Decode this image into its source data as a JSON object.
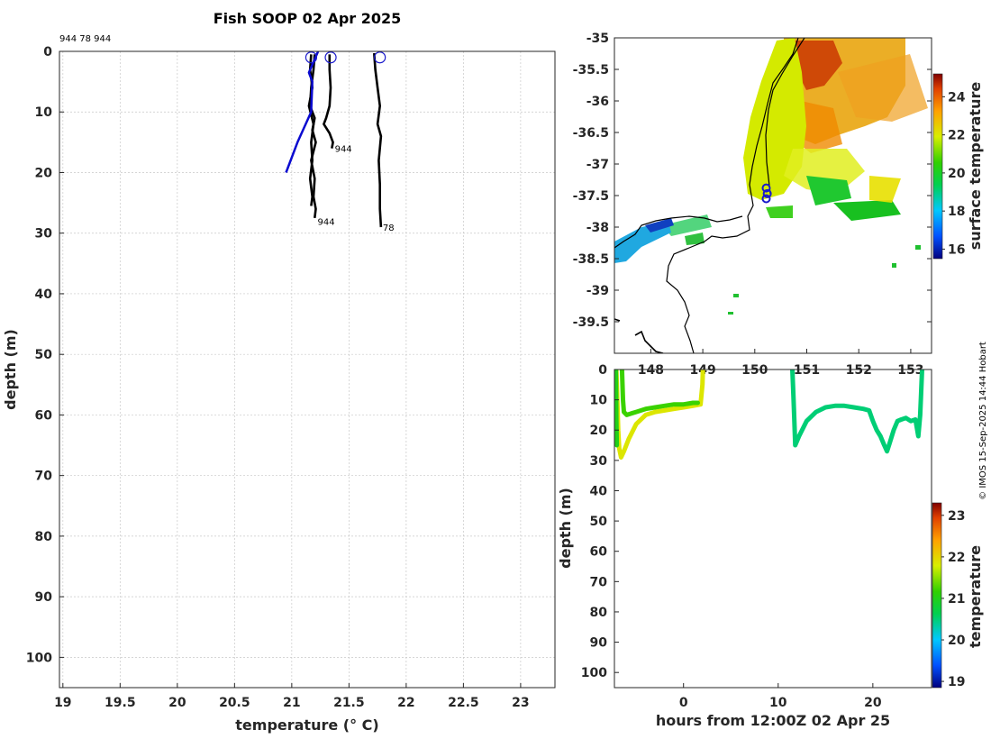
{
  "title": "Fish SOOP 02 Apr 2025",
  "header_note": "944 78 944",
  "credit": "© IMOS 15-Sep-2025 14:44 Hobart",
  "colors": {
    "profile": "#000000",
    "climatology": "#0a0ad0",
    "marker": "#1a1acc"
  },
  "chart_data": [
    {
      "id": "profiles",
      "type": "line",
      "xlabel": "temperature (° C)",
      "ylabel": "depth (m)",
      "xlim": [
        18.97,
        23.3
      ],
      "ylim": [
        105,
        0
      ],
      "xticks": [
        19,
        19.5,
        20,
        20.5,
        21,
        21.5,
        22,
        22.5,
        23
      ],
      "yticks": [
        0,
        10,
        20,
        30,
        40,
        50,
        60,
        70,
        80,
        90,
        100
      ],
      "grid": true,
      "series": [
        {
          "kind": "profile",
          "x": [
            21.2,
            21.19,
            21.17,
            21.16,
            21.2,
            21.18,
            21.21,
            21.17,
            21.2,
            21.19,
            21.21,
            21.2
          ],
          "y": [
            0.5,
            3,
            6,
            9,
            11,
            13,
            15,
            18,
            21,
            24,
            26,
            27.5
          ]
        },
        {
          "kind": "profile",
          "x": [
            21.17,
            21.16,
            21.18,
            21.15,
            21.19,
            21.17,
            21.18,
            21.16,
            21.18,
            21.17
          ],
          "y": [
            0.5,
            3,
            6,
            9,
            12,
            15,
            18,
            21,
            24,
            25.5
          ]
        },
        {
          "kind": "profile",
          "x": [
            21.33,
            21.33,
            21.34,
            21.33,
            21.3,
            21.28,
            21.33,
            21.36,
            21.35
          ],
          "y": [
            0.5,
            3,
            6,
            9,
            11,
            12,
            13.5,
            15,
            16
          ]
        },
        {
          "kind": "profile",
          "x": [
            21.72,
            21.73,
            21.75,
            21.77,
            21.75,
            21.78,
            21.76,
            21.77,
            21.77,
            21.78
          ],
          "y": [
            0.3,
            3,
            6,
            9,
            12,
            14,
            18,
            22,
            26,
            29
          ]
        },
        {
          "kind": "climatology",
          "x": [
            21.23,
            21.15,
            21.18,
            21.17,
            21.05,
            20.95
          ],
          "y": [
            0,
            3.5,
            5,
            10,
            15,
            20
          ]
        }
      ],
      "markers": [
        {
          "x": 21.17,
          "y": 1.0
        },
        {
          "x": 21.34,
          "y": 1.0
        },
        {
          "x": 21.77,
          "y": 1.0
        }
      ],
      "annotations": [
        {
          "text": "944",
          "x": 21.36,
          "y": 16
        },
        {
          "text": "944",
          "x": 21.21,
          "y": 28
        },
        {
          "text": "78",
          "x": 21.78,
          "y": 29
        }
      ]
    },
    {
      "id": "sst-map",
      "type": "heatmap",
      "xlim": [
        147.3,
        153.4
      ],
      "ylim": [
        -40.0,
        -35.0
      ],
      "xticks": [
        148,
        149,
        150,
        151,
        152,
        153
      ],
      "yticks": [
        -35,
        -35.5,
        -36,
        -36.5,
        -37,
        -37.5,
        -38,
        -38.5,
        -39,
        -39.5
      ],
      "colorbar": {
        "label": "surface temperature",
        "range": [
          15.5,
          25.2
        ],
        "ticks": [
          16,
          18,
          20,
          22,
          24
        ]
      },
      "tracks": [
        {
          "lon": 150.22,
          "lat": -37.38
        },
        {
          "lon": 150.24,
          "lat": -37.47
        },
        {
          "lon": 150.22,
          "lat": -37.55
        }
      ]
    },
    {
      "id": "depth-time",
      "type": "scatter",
      "xlabel": "hours from 12:00Z 02 Apr 25",
      "ylabel": "depth (m)",
      "xlim": [
        -7.3,
        26.2
      ],
      "ylim": [
        105,
        0
      ],
      "xticks": [
        0,
        10,
        20
      ],
      "yticks": [
        0,
        10,
        20,
        30,
        40,
        50,
        60,
        70,
        80,
        90,
        100
      ],
      "colorbar": {
        "label": "temperature",
        "range": [
          18.85,
          23.3
        ],
        "ticks": [
          19,
          20,
          21,
          22,
          23
        ]
      },
      "segments": [
        {
          "t": [
            -7.1,
            -7.0,
            -6.9,
            -6.8,
            -6.6,
            -6.3,
            -5.8,
            -5,
            -4,
            -3,
            -2,
            -1,
            0,
            1,
            1.8,
            2.0,
            2.05
          ],
          "d": [
            0,
            10,
            20,
            26,
            29,
            27,
            23,
            18,
            15,
            14,
            13.5,
            13,
            12.5,
            12,
            11.5,
            5,
            0
          ],
          "temp": 21.85
        },
        {
          "t": [
            -6.5,
            -6.4,
            -6.3,
            -6.0,
            -5.5,
            -5,
            -4,
            -3,
            -2,
            -1,
            0,
            1,
            1.5
          ],
          "d": [
            0,
            10,
            14,
            15,
            14.5,
            14,
            13,
            12.5,
            12,
            11.5,
            11.5,
            11,
            11
          ],
          "temp": 21.2
        },
        {
          "t": [
            -7.15,
            -7.12,
            -7.1,
            -7.05
          ],
          "d": [
            0,
            8,
            16,
            25
          ],
          "temp": 21.0
        },
        {
          "t": [
            11.5,
            11.6,
            11.7,
            11.8,
            12.2,
            13,
            14,
            15,
            16,
            17,
            18,
            19,
            19.6,
            20,
            20.4,
            20.8,
            21.2,
            21.5,
            21.8,
            22.2,
            22.6,
            23,
            23.5,
            24,
            24.5,
            24.8,
            25.0,
            25.1,
            25.2
          ],
          "d": [
            0,
            8,
            16,
            25,
            22,
            17,
            14,
            12.5,
            12,
            12,
            12.5,
            13,
            13.5,
            17,
            20,
            22,
            25,
            27,
            24,
            20,
            17,
            16.5,
            16,
            17,
            16.5,
            22,
            15,
            8,
            0
          ],
          "temp": 20.5
        }
      ]
    }
  ]
}
